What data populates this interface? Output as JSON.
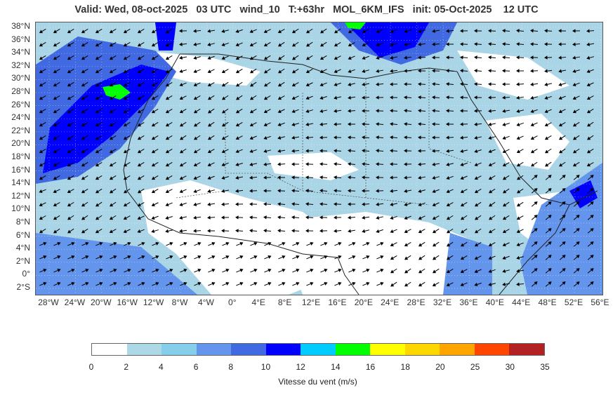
{
  "title": {
    "valid": "Valid: Wed, 08-oct-2025",
    "hour": "03 UTC",
    "field": "wind_10",
    "lead": "T:+63hr",
    "model": "MOL_6KM_IFS",
    "init": "init: 05-Oct-2025",
    "init_hour": "12 UTC"
  },
  "map": {
    "lat_labels": [
      "38°N",
      "36°N",
      "34°N",
      "32°N",
      "30°N",
      "28°N",
      "26°N",
      "24°N",
      "22°N",
      "20°N",
      "18°N",
      "16°N",
      "14°N",
      "12°N",
      "10°N",
      "8°N",
      "6°N",
      "4°N",
      "2°N",
      "0°",
      "2°S"
    ],
    "lon_labels": [
      "28°W",
      "24°W",
      "20°W",
      "16°W",
      "12°W",
      "8°W",
      "4°W",
      "0°",
      "4°E",
      "8°E",
      "12°E",
      "16°E",
      "20°E",
      "24°E",
      "28°E",
      "32°E",
      "36°E",
      "40°E",
      "44°E",
      "48°E",
      "52°E",
      "56°E"
    ]
  },
  "colorbar": {
    "label": "Vitesse du vent (m/s)",
    "ticks": [
      "0",
      "2",
      "4",
      "6",
      "8",
      "10",
      "12",
      "14",
      "16",
      "18",
      "20",
      "25",
      "30",
      "35"
    ],
    "colors": [
      "#ffffff",
      "#add8e6",
      "#87ceeb",
      "#6495ed",
      "#4169e1",
      "#0000ff",
      "#00ccff",
      "#00ff00",
      "#ffff00",
      "#ffd700",
      "#ffa500",
      "#ff4500",
      "#b22222"
    ]
  }
}
